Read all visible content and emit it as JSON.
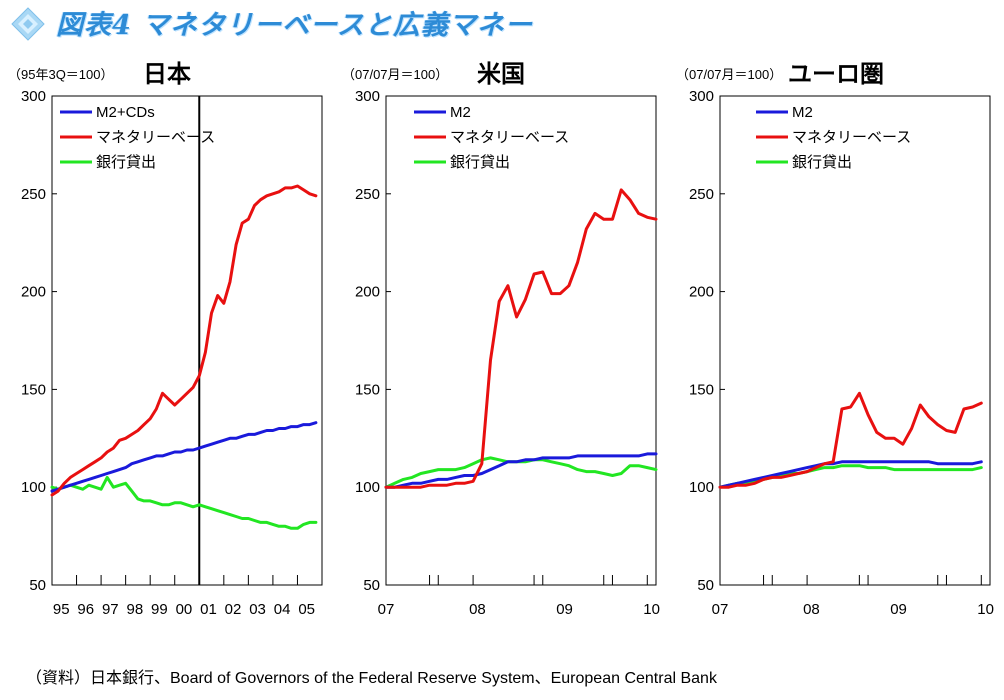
{
  "title": "図表4 マネタリーベースと広義マネー",
  "source": "（資料）日本銀行、Board of Governors of the Federal Reserve System、European Central Bank",
  "chart_data": [
    {
      "type": "line",
      "title": "日本",
      "unit_note": "（95年3Q＝100）",
      "ylim": [
        50,
        300
      ],
      "yticks": [
        50,
        100,
        150,
        200,
        250,
        300
      ],
      "xlim": [
        0,
        44
      ],
      "xtick_labels": [
        "95",
        "96",
        "97",
        "98",
        "99",
        "00",
        "01",
        "02",
        "03",
        "04",
        "05"
      ],
      "xtick_label_pos": [
        1.5,
        5.5,
        9.5,
        13.5,
        17.5,
        21.5,
        25.5,
        29.5,
        33.5,
        37.5,
        41.5
      ],
      "xtick_marks": [
        0,
        4,
        8,
        12,
        16,
        20,
        24,
        28,
        32,
        36,
        40,
        44
      ],
      "vline_x": 24,
      "legend": "top-left",
      "colors": {
        "M2+CDs": "#1a1adb",
        "マネタリーベース": "#e81010",
        "銀行貸出": "#22e622"
      },
      "series": [
        {
          "name": "M2+CDs",
          "x": [
            0,
            1,
            2,
            3,
            4,
            5,
            6,
            7,
            8,
            9,
            10,
            11,
            12,
            13,
            14,
            15,
            16,
            17,
            18,
            19,
            20,
            21,
            22,
            23,
            24,
            25,
            26,
            27,
            28,
            29,
            30,
            31,
            32,
            33,
            34,
            35,
            36,
            37,
            38,
            39,
            40,
            41,
            42,
            43
          ],
          "values": [
            98,
            99,
            100,
            101,
            102,
            103,
            104,
            105,
            106,
            107,
            108,
            109,
            110,
            112,
            113,
            114,
            115,
            116,
            116,
            117,
            118,
            118,
            119,
            119,
            120,
            121,
            122,
            123,
            124,
            125,
            125,
            126,
            127,
            127,
            128,
            129,
            129,
            130,
            130,
            131,
            131,
            132,
            132,
            133
          ]
        },
        {
          "name": "マネタリーベース",
          "x": [
            0,
            1,
            2,
            3,
            4,
            5,
            6,
            7,
            8,
            9,
            10,
            11,
            12,
            13,
            14,
            15,
            16,
            17,
            18,
            19,
            20,
            21,
            22,
            23,
            24,
            25,
            26,
            27,
            28,
            29,
            30,
            31,
            32,
            33,
            34,
            35,
            36,
            37,
            38,
            39,
            40,
            41,
            42,
            43
          ],
          "values": [
            96,
            98,
            102,
            105,
            107,
            109,
            111,
            113,
            115,
            118,
            120,
            124,
            125,
            127,
            129,
            132,
            135,
            140,
            148,
            145,
            142,
            145,
            148,
            151,
            157,
            169,
            189,
            198,
            194,
            205,
            224,
            235,
            237,
            244,
            247,
            249,
            250,
            251,
            253,
            253,
            254,
            252,
            250,
            249
          ]
        },
        {
          "name": "銀行貸出",
          "x": [
            0,
            1,
            2,
            3,
            4,
            5,
            6,
            7,
            8,
            9,
            10,
            11,
            12,
            13,
            14,
            15,
            16,
            17,
            18,
            19,
            20,
            21,
            22,
            23,
            24,
            25,
            26,
            27,
            28,
            29,
            30,
            31,
            32,
            33,
            34,
            35,
            36,
            37,
            38,
            39,
            40,
            41,
            42,
            43
          ],
          "values": [
            100,
            99,
            100,
            101,
            100,
            99,
            101,
            100,
            99,
            105,
            100,
            101,
            102,
            98,
            94,
            93,
            93,
            92,
            91,
            91,
            92,
            92,
            91,
            90,
            91,
            90,
            89,
            88,
            87,
            86,
            85,
            84,
            84,
            83,
            82,
            82,
            81,
            80,
            80,
            79,
            79,
            81,
            82,
            82
          ]
        }
      ]
    },
    {
      "type": "line",
      "title": "米国",
      "unit_note": "（07/07月＝100）",
      "ylim": [
        50,
        300
      ],
      "yticks": [
        50,
        100,
        150,
        200,
        250,
        300
      ],
      "xlim": [
        0,
        31
      ],
      "xtick_labels": [
        "07",
        "08",
        "09",
        "10"
      ],
      "xtick_label_pos": [
        0,
        10.5,
        20.5,
        30.5
      ],
      "xtick_marks": [
        0,
        5,
        6,
        10,
        17,
        18,
        25,
        26,
        30
      ],
      "legend": "top-left",
      "colors": {
        "M2": "#1a1adb",
        "マネタリーベース": "#e81010",
        "銀行貸出": "#22e622"
      },
      "series": [
        {
          "name": "M2",
          "x": [
            0,
            1,
            2,
            3,
            4,
            5,
            6,
            7,
            8,
            9,
            10,
            11,
            12,
            13,
            14,
            15,
            16,
            17,
            18,
            19,
            20,
            21,
            22,
            23,
            24,
            25,
            26,
            27,
            28,
            29,
            30,
            31
          ],
          "values": [
            100,
            100,
            101,
            102,
            102,
            103,
            104,
            104,
            105,
            106,
            106,
            107,
            109,
            111,
            113,
            113,
            114,
            114,
            115,
            115,
            115,
            115,
            116,
            116,
            116,
            116,
            116,
            116,
            116,
            116,
            117,
            117
          ]
        },
        {
          "name": "マネタリーベース",
          "x": [
            0,
            1,
            2,
            3,
            4,
            5,
            6,
            7,
            8,
            9,
            10,
            11,
            12,
            13,
            14,
            15,
            16,
            17,
            18,
            19,
            20,
            21,
            22,
            23,
            24,
            25,
            26,
            27,
            28,
            29,
            30,
            31
          ],
          "values": [
            100,
            100,
            100,
            100,
            100,
            101,
            101,
            101,
            102,
            102,
            103,
            112,
            165,
            195,
            203,
            187,
            196,
            209,
            210,
            199,
            199,
            203,
            215,
            232,
            240,
            237,
            237,
            252,
            247,
            240,
            238,
            237
          ]
        },
        {
          "name": "銀行貸出",
          "x": [
            0,
            1,
            2,
            3,
            4,
            5,
            6,
            7,
            8,
            9,
            10,
            11,
            12,
            13,
            14,
            15,
            16,
            17,
            18,
            19,
            20,
            21,
            22,
            23,
            24,
            25,
            26,
            27,
            28,
            29,
            30,
            31
          ],
          "values": [
            100,
            102,
            104,
            105,
            107,
            108,
            109,
            109,
            109,
            110,
            112,
            114,
            115,
            114,
            113,
            113,
            113,
            114,
            114,
            113,
            112,
            111,
            109,
            108,
            108,
            107,
            106,
            107,
            111,
            111,
            110,
            109
          ]
        }
      ]
    },
    {
      "type": "line",
      "title": "ユーロ圏",
      "unit_note": "（07/07月＝100）",
      "ylim": [
        50,
        300
      ],
      "yticks": [
        50,
        100,
        150,
        200,
        250,
        300
      ],
      "xlim": [
        0,
        31
      ],
      "xtick_labels": [
        "07",
        "08",
        "09",
        "10"
      ],
      "xtick_label_pos": [
        0,
        10.5,
        20.5,
        30.5
      ],
      "xtick_marks": [
        0,
        5,
        6,
        10,
        16,
        17,
        25,
        26,
        30
      ],
      "legend": "top-left",
      "colors": {
        "M2": "#1a1adb",
        "マネタリーベース": "#e81010",
        "銀行貸出": "#22e622"
      },
      "series": [
        {
          "name": "M2",
          "x": [
            0,
            1,
            2,
            3,
            4,
            5,
            6,
            7,
            8,
            9,
            10,
            11,
            12,
            13,
            14,
            15,
            16,
            17,
            18,
            19,
            20,
            21,
            22,
            23,
            24,
            25,
            26,
            27,
            28,
            29,
            30
          ],
          "values": [
            100,
            101,
            102,
            103,
            104,
            105,
            106,
            107,
            108,
            109,
            110,
            111,
            112,
            112,
            113,
            113,
            113,
            113,
            113,
            113,
            113,
            113,
            113,
            113,
            113,
            112,
            112,
            112,
            112,
            112,
            113
          ]
        },
        {
          "name": "マネタリーベース",
          "x": [
            0,
            1,
            2,
            3,
            4,
            5,
            6,
            7,
            8,
            9,
            10,
            11,
            12,
            13,
            14,
            15,
            16,
            17,
            18,
            19,
            20,
            21,
            22,
            23,
            24,
            25,
            26,
            27,
            28,
            29,
            30
          ],
          "values": [
            100,
            100,
            101,
            101,
            102,
            104,
            105,
            105,
            106,
            107,
            108,
            110,
            112,
            113,
            140,
            141,
            148,
            137,
            128,
            125,
            125,
            122,
            130,
            142,
            136,
            132,
            129,
            128,
            140,
            141,
            143
          ]
        },
        {
          "name": "銀行貸出",
          "x": [
            0,
            1,
            2,
            3,
            4,
            5,
            6,
            7,
            8,
            9,
            10,
            11,
            12,
            13,
            14,
            15,
            16,
            17,
            18,
            19,
            20,
            21,
            22,
            23,
            24,
            25,
            26,
            27,
            28,
            29,
            30
          ],
          "values": [
            100,
            101,
            102,
            102,
            103,
            104,
            105,
            106,
            107,
            107,
            108,
            109,
            110,
            110,
            111,
            111,
            111,
            110,
            110,
            110,
            109,
            109,
            109,
            109,
            109,
            109,
            109,
            109,
            109,
            109,
            110
          ]
        }
      ]
    }
  ]
}
